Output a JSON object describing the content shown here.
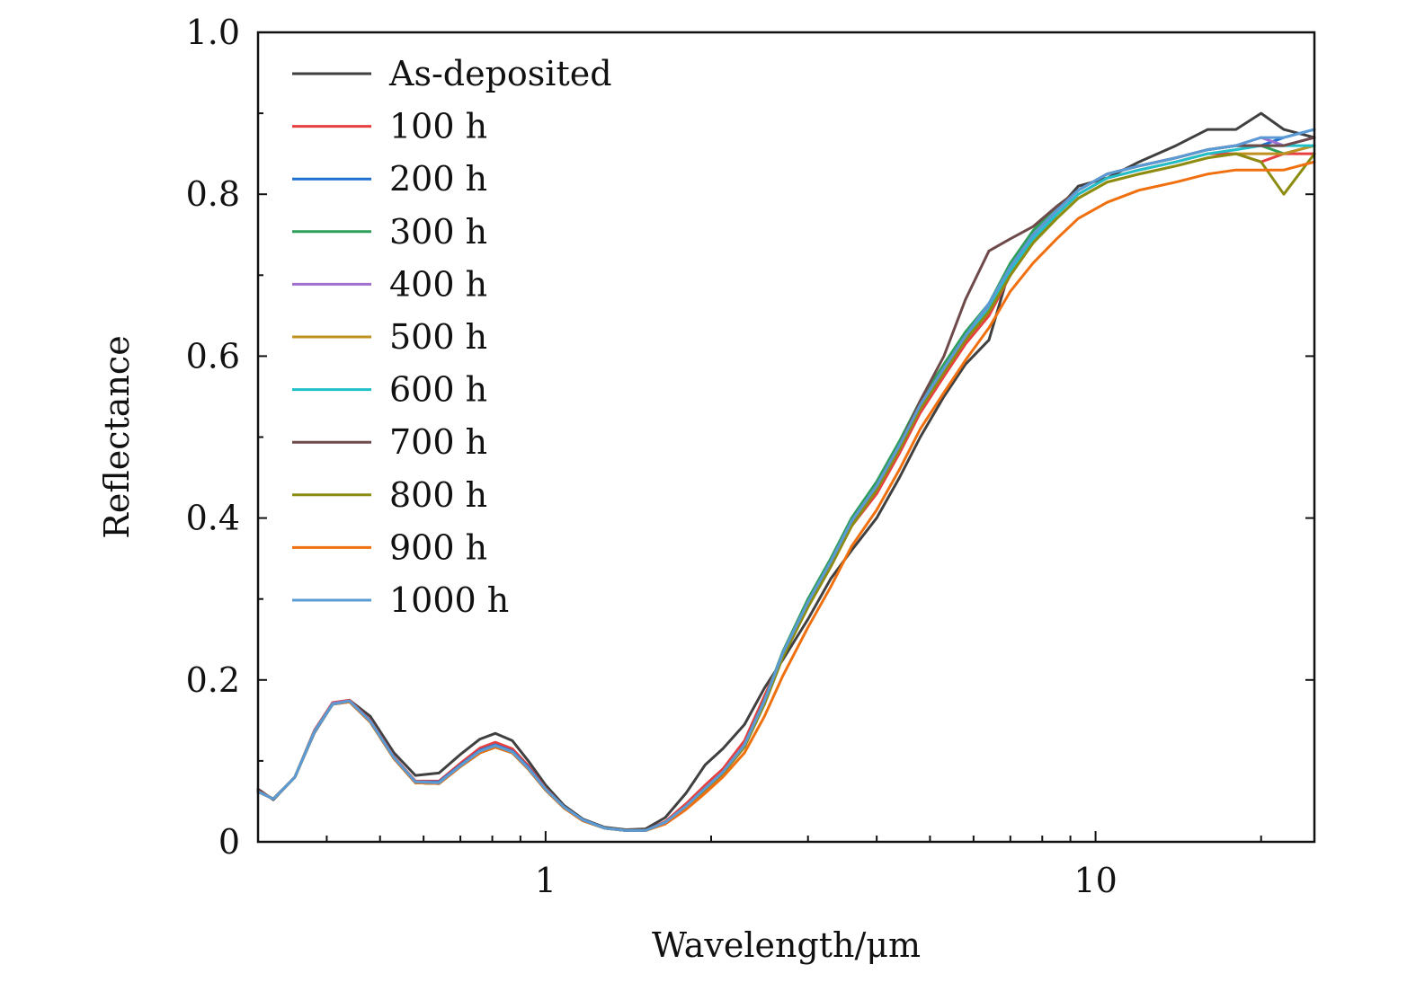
{
  "chart_data": {
    "type": "line",
    "xlabel": "Wavelength/μm",
    "ylabel": "Reflectance",
    "xscale": "log",
    "xlim": [
      0.3,
      25
    ],
    "ylim": [
      0,
      1.0
    ],
    "x_ticks": [
      {
        "value": 1,
        "label": "1"
      },
      {
        "value": 10,
        "label": "10"
      }
    ],
    "y_ticks": [
      {
        "value": 0,
        "label": "0"
      },
      {
        "value": 0.2,
        "label": "0.2"
      },
      {
        "value": 0.4,
        "label": "0.4"
      },
      {
        "value": 0.6,
        "label": "0.6"
      },
      {
        "value": 0.8,
        "label": "0.8"
      },
      {
        "value": 1.0,
        "label": "1.0"
      }
    ],
    "grid": false,
    "legend_position": "top-left",
    "x": [
      0.3,
      0.32,
      0.35,
      0.38,
      0.41,
      0.44,
      0.48,
      0.53,
      0.58,
      0.64,
      0.7,
      0.76,
      0.81,
      0.87,
      0.93,
      1.0,
      1.08,
      1.17,
      1.28,
      1.4,
      1.52,
      1.65,
      1.8,
      1.95,
      2.1,
      2.3,
      2.5,
      2.7,
      3.0,
      3.3,
      3.6,
      4.0,
      4.4,
      4.8,
      5.3,
      5.8,
      6.4,
      7.0,
      7.7,
      8.5,
      9.3,
      10.5,
      12.0,
      14.0,
      16.0,
      18.0,
      20.0,
      22.0,
      25.0
    ],
    "series": [
      {
        "name": "As-deposited",
        "color": "#404040",
        "values": [
          0.065,
          0.052,
          0.08,
          0.135,
          0.17,
          0.175,
          0.155,
          0.11,
          0.082,
          0.085,
          0.108,
          0.127,
          0.134,
          0.125,
          0.1,
          0.07,
          0.045,
          0.028,
          0.018,
          0.015,
          0.016,
          0.03,
          0.06,
          0.095,
          0.115,
          0.145,
          0.19,
          0.225,
          0.275,
          0.325,
          0.36,
          0.4,
          0.45,
          0.5,
          0.55,
          0.59,
          0.62,
          0.71,
          0.75,
          0.78,
          0.81,
          0.82,
          0.84,
          0.86,
          0.88,
          0.88,
          0.9,
          0.88,
          0.87
        ]
      },
      {
        "name": "100 h",
        "color": "#e84040",
        "values": [
          0.063,
          0.053,
          0.08,
          0.138,
          0.172,
          0.175,
          0.15,
          0.105,
          0.075,
          0.075,
          0.097,
          0.116,
          0.123,
          0.115,
          0.094,
          0.066,
          0.043,
          0.027,
          0.017,
          0.014,
          0.014,
          0.025,
          0.047,
          0.07,
          0.09,
          0.125,
          0.18,
          0.23,
          0.29,
          0.34,
          0.39,
          0.43,
          0.48,
          0.53,
          0.575,
          0.615,
          0.65,
          0.7,
          0.74,
          0.775,
          0.8,
          0.82,
          0.83,
          0.84,
          0.85,
          0.85,
          0.84,
          0.85,
          0.85
        ]
      },
      {
        "name": "200 h",
        "color": "#1f6fd1",
        "values": [
          0.062,
          0.053,
          0.08,
          0.137,
          0.171,
          0.174,
          0.149,
          0.104,
          0.074,
          0.074,
          0.095,
          0.113,
          0.12,
          0.112,
          0.092,
          0.065,
          0.043,
          0.027,
          0.017,
          0.014,
          0.014,
          0.024,
          0.044,
          0.066,
          0.086,
          0.12,
          0.175,
          0.232,
          0.295,
          0.345,
          0.395,
          0.44,
          0.49,
          0.54,
          0.585,
          0.625,
          0.66,
          0.71,
          0.75,
          0.78,
          0.805,
          0.825,
          0.835,
          0.845,
          0.855,
          0.86,
          0.86,
          0.87,
          0.88
        ]
      },
      {
        "name": "300 h",
        "color": "#2e9e5b",
        "values": [
          0.062,
          0.053,
          0.08,
          0.137,
          0.171,
          0.174,
          0.149,
          0.104,
          0.074,
          0.073,
          0.094,
          0.112,
          0.119,
          0.111,
          0.091,
          0.065,
          0.043,
          0.027,
          0.017,
          0.014,
          0.014,
          0.024,
          0.044,
          0.066,
          0.086,
          0.12,
          0.175,
          0.235,
          0.3,
          0.35,
          0.4,
          0.445,
          0.495,
          0.545,
          0.59,
          0.63,
          0.665,
          0.715,
          0.755,
          0.785,
          0.805,
          0.825,
          0.835,
          0.845,
          0.855,
          0.86,
          0.86,
          0.85,
          0.86
        ]
      },
      {
        "name": "400 h",
        "color": "#a070d0",
        "values": [
          0.062,
          0.053,
          0.08,
          0.137,
          0.171,
          0.174,
          0.149,
          0.104,
          0.074,
          0.073,
          0.094,
          0.112,
          0.119,
          0.111,
          0.091,
          0.065,
          0.043,
          0.027,
          0.017,
          0.014,
          0.014,
          0.024,
          0.044,
          0.066,
          0.086,
          0.12,
          0.174,
          0.233,
          0.296,
          0.346,
          0.396,
          0.44,
          0.49,
          0.54,
          0.585,
          0.625,
          0.66,
          0.71,
          0.75,
          0.78,
          0.805,
          0.825,
          0.835,
          0.845,
          0.855,
          0.86,
          0.87,
          0.86,
          0.87
        ]
      },
      {
        "name": "500 h",
        "color": "#c09020",
        "values": [
          0.062,
          0.053,
          0.08,
          0.136,
          0.17,
          0.173,
          0.148,
          0.103,
          0.073,
          0.072,
          0.093,
          0.11,
          0.117,
          0.11,
          0.09,
          0.064,
          0.042,
          0.026,
          0.017,
          0.014,
          0.014,
          0.023,
          0.042,
          0.064,
          0.084,
          0.117,
          0.17,
          0.228,
          0.29,
          0.34,
          0.39,
          0.435,
          0.485,
          0.535,
          0.58,
          0.62,
          0.655,
          0.7,
          0.74,
          0.77,
          0.795,
          0.815,
          0.825,
          0.835,
          0.845,
          0.85,
          0.85,
          0.85,
          0.86
        ]
      },
      {
        "name": "600 h",
        "color": "#20c0c8",
        "values": [
          0.062,
          0.053,
          0.08,
          0.136,
          0.17,
          0.173,
          0.148,
          0.103,
          0.073,
          0.072,
          0.093,
          0.11,
          0.117,
          0.11,
          0.09,
          0.064,
          0.042,
          0.026,
          0.017,
          0.014,
          0.014,
          0.023,
          0.043,
          0.065,
          0.085,
          0.118,
          0.172,
          0.23,
          0.293,
          0.343,
          0.393,
          0.438,
          0.488,
          0.538,
          0.583,
          0.623,
          0.658,
          0.705,
          0.745,
          0.775,
          0.8,
          0.82,
          0.83,
          0.84,
          0.85,
          0.855,
          0.86,
          0.86,
          0.86
        ]
      },
      {
        "name": "700 h",
        "color": "#6e4a4a",
        "values": [
          0.062,
          0.053,
          0.08,
          0.136,
          0.17,
          0.173,
          0.148,
          0.103,
          0.073,
          0.072,
          0.093,
          0.11,
          0.117,
          0.11,
          0.09,
          0.064,
          0.042,
          0.026,
          0.017,
          0.014,
          0.014,
          0.023,
          0.043,
          0.065,
          0.085,
          0.118,
          0.173,
          0.232,
          0.295,
          0.345,
          0.395,
          0.44,
          0.49,
          0.545,
          0.6,
          0.67,
          0.73,
          0.745,
          0.76,
          0.785,
          0.805,
          0.825,
          0.835,
          0.845,
          0.855,
          0.86,
          0.86,
          0.86,
          0.87
        ]
      },
      {
        "name": "800 h",
        "color": "#8c8c10",
        "values": [
          0.062,
          0.053,
          0.08,
          0.136,
          0.17,
          0.173,
          0.148,
          0.103,
          0.073,
          0.072,
          0.093,
          0.11,
          0.117,
          0.11,
          0.09,
          0.064,
          0.042,
          0.026,
          0.017,
          0.014,
          0.014,
          0.023,
          0.043,
          0.065,
          0.085,
          0.118,
          0.17,
          0.228,
          0.29,
          0.34,
          0.39,
          0.435,
          0.485,
          0.535,
          0.58,
          0.62,
          0.655,
          0.7,
          0.74,
          0.77,
          0.795,
          0.815,
          0.825,
          0.835,
          0.845,
          0.85,
          0.84,
          0.8,
          0.85
        ]
      },
      {
        "name": "900 h",
        "color": "#f07010",
        "values": [
          0.062,
          0.053,
          0.08,
          0.136,
          0.17,
          0.173,
          0.148,
          0.103,
          0.073,
          0.072,
          0.093,
          0.11,
          0.117,
          0.11,
          0.09,
          0.064,
          0.042,
          0.026,
          0.017,
          0.014,
          0.014,
          0.022,
          0.04,
          0.06,
          0.08,
          0.11,
          0.155,
          0.205,
          0.265,
          0.315,
          0.365,
          0.41,
          0.46,
          0.51,
          0.555,
          0.595,
          0.635,
          0.68,
          0.715,
          0.745,
          0.77,
          0.79,
          0.805,
          0.815,
          0.825,
          0.83,
          0.83,
          0.83,
          0.84
        ]
      },
      {
        "name": "1000 h",
        "color": "#5b9bd5",
        "values": [
          0.062,
          0.053,
          0.08,
          0.136,
          0.17,
          0.174,
          0.149,
          0.104,
          0.074,
          0.073,
          0.094,
          0.112,
          0.119,
          0.111,
          0.091,
          0.065,
          0.043,
          0.027,
          0.017,
          0.014,
          0.014,
          0.024,
          0.044,
          0.066,
          0.086,
          0.12,
          0.174,
          0.233,
          0.296,
          0.346,
          0.396,
          0.44,
          0.49,
          0.54,
          0.585,
          0.625,
          0.665,
          0.71,
          0.75,
          0.78,
          0.805,
          0.825,
          0.835,
          0.845,
          0.855,
          0.86,
          0.87,
          0.87,
          0.88
        ]
      }
    ]
  }
}
